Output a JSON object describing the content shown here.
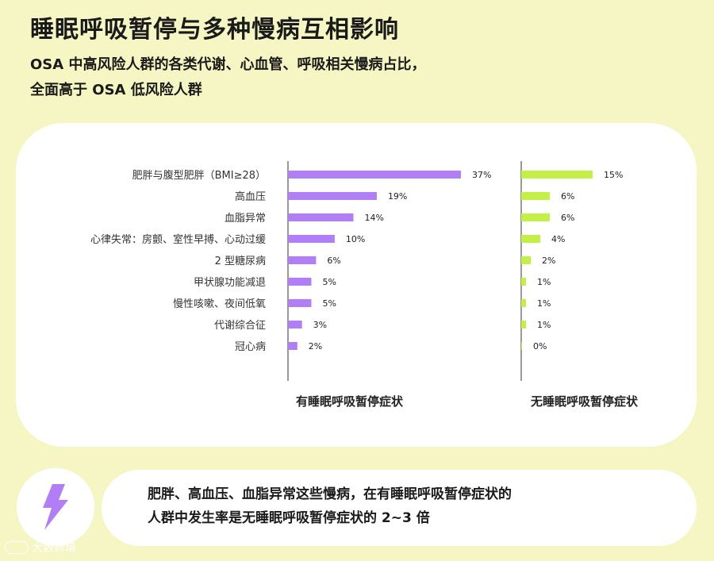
{
  "title": "睡眠呼吸暂停与多种慢病互相影响",
  "subtitle_line1": "OSA 中高风险人群的各类代谢、心血管、呼吸相关慢病占比，",
  "subtitle_line2": "全面高于 OSA 低风险人群",
  "footer": {
    "line1": "肥胖、高血压、血脂异常这些慢病，在有睡眠呼吸暂停症状的",
    "line2": "人群中发生率是无睡眠呼吸暂停症状的 2~3 倍",
    "icon": "lightning-icon"
  },
  "watermark": "大数跨境",
  "colors": {
    "background": "#f6f5c4",
    "series1": "#b27ef5",
    "series2": "#c2f046"
  },
  "chart_data": {
    "type": "bar",
    "orientation": "horizontal",
    "categories": [
      "肥胖与腹型肥胖（BMI≥28）",
      "高血压",
      "血脂异常",
      "心律失常：房颤、室性早搏、心动过缓",
      "2 型糖尿病",
      "甲状腺功能减退",
      "慢性咳嗽、夜间低氧",
      "代谢综合征",
      "冠心病"
    ],
    "series": [
      {
        "name": "有睡眠呼吸暂停症状",
        "values": [
          37,
          19,
          14,
          10,
          6,
          5,
          5,
          3,
          2
        ],
        "labels": [
          "37%",
          "19%",
          "14%",
          "10%",
          "6%",
          "5%",
          "5%",
          "3%",
          "2%"
        ]
      },
      {
        "name": "无睡眠呼吸暂停症状",
        "values": [
          15,
          6,
          6,
          4,
          2,
          1,
          1,
          1,
          0
        ],
        "labels": [
          "15%",
          "6%",
          "6%",
          "4%",
          "2%",
          "1%",
          "1%",
          "1%",
          "0%"
        ]
      }
    ]
  }
}
